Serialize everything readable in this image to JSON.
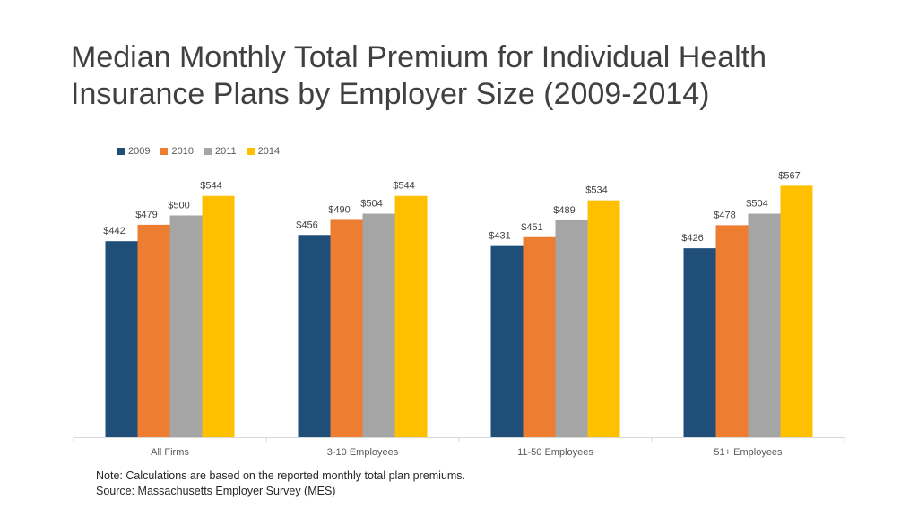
{
  "chart_data": {
    "type": "bar",
    "title": "Median Monthly Total Premium for Individual Health Insurance Plans by Employer Size (2009-2014)",
    "title_lines": [
      "Median Monthly Total Premium for Individual Health",
      "Insurance Plans by Employer Size (2009-2014)"
    ],
    "categories": [
      "All Firms",
      "3-10 Employees",
      "11-50 Employees",
      "51+ Employees"
    ],
    "series": [
      {
        "name": "2009",
        "color": "#1f4e79",
        "values": [
          442,
          456,
          431,
          426
        ],
        "labels": [
          "$442",
          "$456",
          "$431",
          "$426"
        ]
      },
      {
        "name": "2010",
        "color": "#ed7d31",
        "values": [
          479,
          490,
          451,
          478
        ],
        "labels": [
          "$479",
          "$490",
          "$451",
          "$478"
        ]
      },
      {
        "name": "2011",
        "color": "#a5a5a5",
        "values": [
          500,
          504,
          489,
          504
        ],
        "labels": [
          "$500",
          "$504",
          "$489",
          "$504"
        ]
      },
      {
        "name": "2014",
        "color": "#ffc000",
        "values": [
          544,
          544,
          534,
          567
        ],
        "labels": [
          "$544",
          "$544",
          "$534",
          "$567"
        ]
      }
    ],
    "xlabel": "",
    "ylabel": "",
    "ylim": [
      0,
      600
    ],
    "grid": false,
    "legend_position": "top-left"
  },
  "notes": {
    "note": "Note: Calculations are based on the reported monthly total plan premiums.",
    "source": "Source: Massachusetts Employer Survey (MES)"
  }
}
